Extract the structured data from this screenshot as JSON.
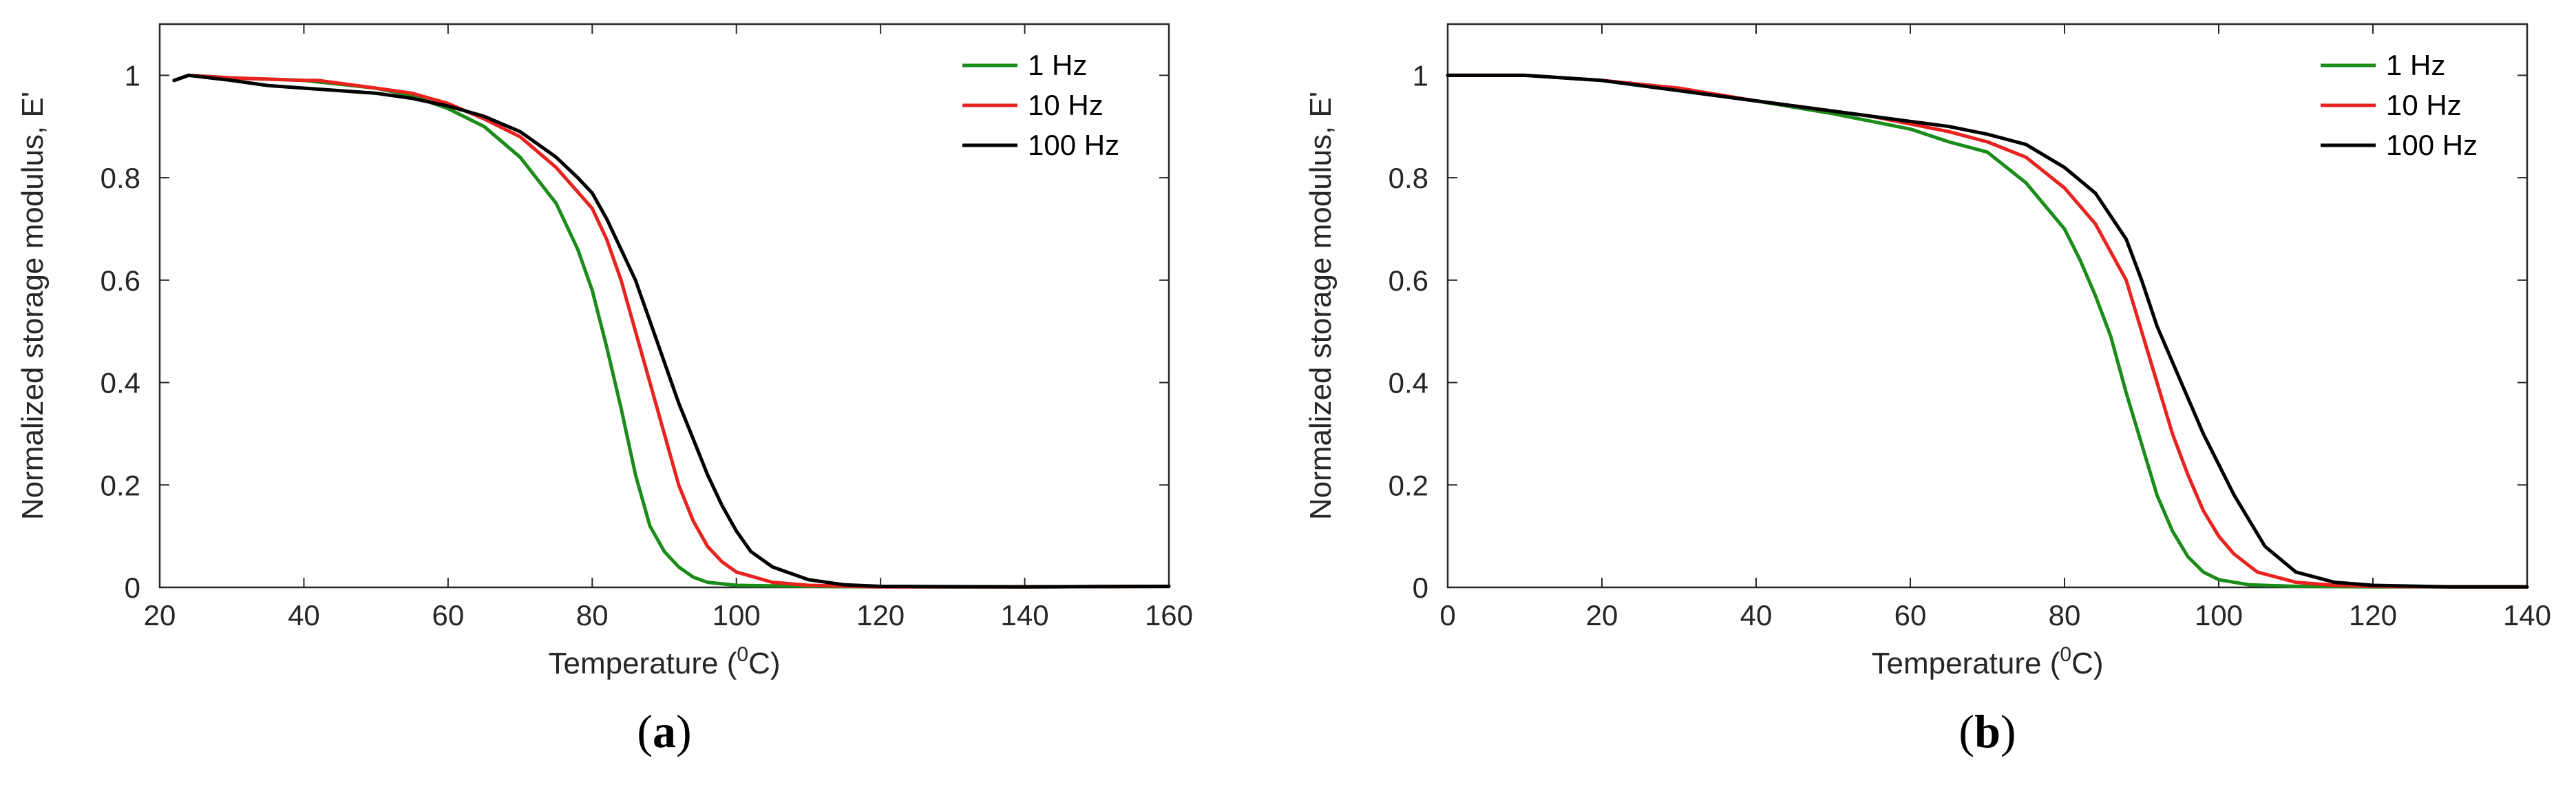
{
  "chart_data": [
    {
      "type": "line",
      "panel_label": "(a)",
      "panel_letter": "a",
      "xlabel": "Temperature (",
      "xlabel_sup": "0",
      "xlabel_end": "C)",
      "ylabel": "Normalized storage modulus, E'",
      "xlim": [
        20,
        160
      ],
      "ylim": [
        0,
        1.1
      ],
      "xticks": [
        20,
        40,
        60,
        80,
        100,
        120,
        140,
        160
      ],
      "yticks": [
        0,
        0.2,
        0.4,
        0.6,
        0.8,
        1
      ],
      "legend_position": "top-right",
      "grid": false,
      "series": [
        {
          "name": "1 Hz",
          "color": "#1a8c1a",
          "x": [
            22,
            24,
            30,
            40,
            50,
            55,
            60,
            65,
            70,
            75,
            78,
            80,
            82,
            84,
            86,
            88,
            90,
            92,
            94,
            96,
            100,
            110,
            120,
            140,
            160
          ],
          "y": [
            0.99,
            1.0,
            0.995,
            0.99,
            0.975,
            0.96,
            0.935,
            0.9,
            0.84,
            0.75,
            0.66,
            0.58,
            0.47,
            0.35,
            0.22,
            0.12,
            0.07,
            0.04,
            0.02,
            0.01,
            0.004,
            0.002,
            0.001,
            0.001,
            0.002
          ]
        },
        {
          "name": "10 Hz",
          "color": "#e8231f",
          "x": [
            22,
            24,
            30,
            40,
            42,
            50,
            55,
            60,
            65,
            70,
            75,
            80,
            82,
            84,
            86,
            88,
            90,
            92,
            94,
            96,
            98,
            100,
            105,
            110,
            120,
            140,
            160
          ],
          "y": [
            0.99,
            1.0,
            0.995,
            0.99,
            0.99,
            0.975,
            0.965,
            0.945,
            0.915,
            0.88,
            0.82,
            0.74,
            0.68,
            0.6,
            0.5,
            0.4,
            0.3,
            0.2,
            0.13,
            0.08,
            0.05,
            0.03,
            0.01,
            0.004,
            0.001,
            0.001,
            0.002
          ]
        },
        {
          "name": "100 Hz",
          "color": "#000000",
          "x": [
            22,
            24,
            30,
            35,
            40,
            50,
            55,
            60,
            65,
            70,
            75,
            78,
            80,
            82,
            84,
            86,
            88,
            90,
            92,
            94,
            96,
            98,
            100,
            102,
            105,
            110,
            115,
            120,
            140,
            160
          ],
          "y": [
            0.99,
            1.0,
            0.99,
            0.98,
            0.975,
            0.965,
            0.955,
            0.94,
            0.92,
            0.89,
            0.84,
            0.8,
            0.77,
            0.72,
            0.66,
            0.6,
            0.52,
            0.44,
            0.36,
            0.29,
            0.22,
            0.16,
            0.11,
            0.07,
            0.04,
            0.015,
            0.005,
            0.002,
            0.001,
            0.002
          ]
        }
      ]
    },
    {
      "type": "line",
      "panel_label": "(b)",
      "panel_letter": "b",
      "xlabel": "Temperature (",
      "xlabel_sup": "0",
      "xlabel_end": "C)",
      "ylabel": "Normalized storage modulus, E'",
      "xlim": [
        0,
        140
      ],
      "ylim": [
        0,
        1.1
      ],
      "xticks": [
        0,
        20,
        40,
        60,
        80,
        100,
        120,
        140
      ],
      "yticks": [
        0,
        0.2,
        0.4,
        0.6,
        0.8,
        1
      ],
      "legend_position": "top-right",
      "grid": false,
      "series": [
        {
          "name": "1 Hz",
          "color": "#1a8c1a",
          "x": [
            0,
            10,
            20,
            30,
            40,
            50,
            55,
            60,
            65,
            70,
            75,
            80,
            82,
            84,
            86,
            88,
            90,
            92,
            94,
            96,
            98,
            100,
            104,
            110,
            120,
            130,
            140
          ],
          "y": [
            1.0,
            1.0,
            0.99,
            0.97,
            0.95,
            0.925,
            0.91,
            0.895,
            0.87,
            0.85,
            0.79,
            0.7,
            0.64,
            0.57,
            0.49,
            0.38,
            0.28,
            0.18,
            0.11,
            0.06,
            0.03,
            0.015,
            0.005,
            0.002,
            0.001,
            0.001,
            0.001
          ]
        },
        {
          "name": "10 Hz",
          "color": "#e8231f",
          "x": [
            0,
            10,
            20,
            30,
            40,
            50,
            55,
            60,
            65,
            70,
            75,
            80,
            84,
            88,
            90,
            92,
            94,
            96,
            98,
            100,
            102,
            105,
            110,
            115,
            120,
            130,
            140
          ],
          "y": [
            1.0,
            1.0,
            0.99,
            0.975,
            0.95,
            0.93,
            0.92,
            0.905,
            0.89,
            0.87,
            0.84,
            0.78,
            0.71,
            0.6,
            0.5,
            0.4,
            0.3,
            0.22,
            0.15,
            0.1,
            0.065,
            0.03,
            0.01,
            0.004,
            0.002,
            0.001,
            0.001
          ]
        },
        {
          "name": "100 Hz",
          "color": "#000000",
          "x": [
            0,
            10,
            20,
            30,
            40,
            50,
            55,
            60,
            65,
            70,
            75,
            80,
            84,
            88,
            90,
            92,
            94,
            96,
            98,
            100,
            102,
            104,
            106,
            110,
            115,
            120,
            130,
            140
          ],
          "y": [
            1.0,
            1.0,
            0.99,
            0.97,
            0.95,
            0.93,
            0.92,
            0.91,
            0.9,
            0.885,
            0.865,
            0.82,
            0.77,
            0.68,
            0.6,
            0.51,
            0.44,
            0.37,
            0.3,
            0.24,
            0.18,
            0.13,
            0.08,
            0.03,
            0.01,
            0.004,
            0.001,
            0.001
          ]
        }
      ]
    }
  ]
}
